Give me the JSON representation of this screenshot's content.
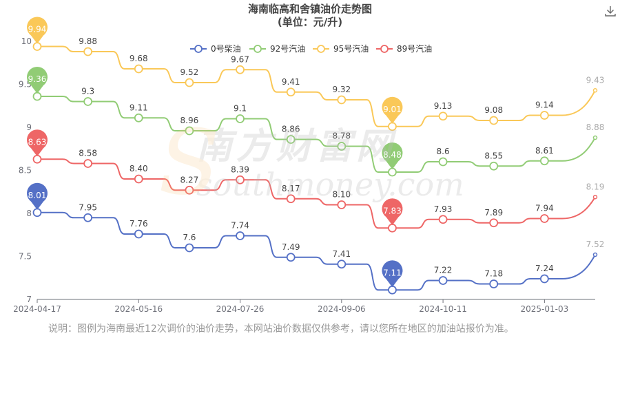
{
  "page": {
    "title_line1": "海南临高和舍镇油价走势图",
    "title_line2": "(单位：元/升)",
    "note": "说明：图例为海南最近12次调价的油价走势，本网站油价数据仅供参考，请以您所在地区的加油站报价为准。",
    "watermark_cn": "南方财富网",
    "watermark_en": "southmoney.com",
    "download_icon": "download-icon"
  },
  "chart_data": {
    "type": "line",
    "title": "海南临高和舍镇油价走势图",
    "subtitle": "(单位：元/升)",
    "ylim": [
      7,
      10
    ],
    "yticks": [
      7,
      7.5,
      8,
      8.5,
      9,
      9.5,
      10
    ],
    "ytick_labels": [
      "7",
      "7.5",
      "8",
      "8.5",
      "9",
      "9.5",
      "10"
    ],
    "x": [
      "2024-04-17",
      "2024-05-01",
      "2024-05-16",
      "2024-05-30",
      "2024-07-26",
      "2024-08-08",
      "2024-09-06",
      "2024-09-20",
      "2024-10-11",
      "2024-10-25",
      "2025-01-03",
      "2025-01-17"
    ],
    "xtick_labels": [
      "2024-04-17",
      "2024-05-16",
      "2024-07-26",
      "2024-09-06",
      "2024-10-11",
      "2025-01-03"
    ],
    "legend_position": "top",
    "grid": false,
    "series": [
      {
        "name": "0号柴油",
        "color": "#5470c6",
        "values": [
          8.01,
          7.95,
          7.76,
          7.6,
          7.74,
          7.49,
          7.41,
          7.11,
          7.22,
          7.18,
          7.24,
          7.52
        ],
        "labels": [
          "8.01",
          "7.95",
          "7.76",
          "7.6",
          "7.74",
          "7.49",
          "7.41",
          "7.11",
          "7.22",
          "7.18",
          "7.24",
          "7.52"
        ],
        "max_index": 0,
        "min_index": 7
      },
      {
        "name": "92号汽油",
        "color": "#91cc75",
        "values": [
          9.36,
          9.3,
          9.11,
          8.96,
          9.1,
          8.86,
          8.78,
          8.48,
          8.6,
          8.55,
          8.61,
          8.88
        ],
        "labels": [
          "9.36",
          "9.3",
          "9.11",
          "8.96",
          "9.1",
          "8.86",
          "8.78",
          "8.48",
          "8.6",
          "8.55",
          "8.61",
          "8.88"
        ],
        "max_index": 0,
        "min_index": 7
      },
      {
        "name": "95号汽油",
        "color": "#fac858",
        "values": [
          9.94,
          9.88,
          9.68,
          9.52,
          9.67,
          9.41,
          9.32,
          9.01,
          9.13,
          9.08,
          9.14,
          9.43
        ],
        "labels": [
          "9.94",
          "9.88",
          "9.68",
          "9.52",
          "9.67",
          "9.41",
          "9.32",
          "9.01",
          "9.13",
          "9.08",
          "9.14",
          "9.43"
        ],
        "max_index": 0,
        "min_index": 7
      },
      {
        "name": "89号汽油",
        "color": "#ee6666",
        "values": [
          8.63,
          8.58,
          8.4,
          8.27,
          8.39,
          8.17,
          8.1,
          7.83,
          7.93,
          7.89,
          7.94,
          8.19
        ],
        "labels": [
          "8.63",
          "8.58",
          "8.40",
          "8.27",
          "8.39",
          "8.17",
          "8.10",
          "7.83",
          "7.93",
          "7.89",
          "7.94",
          "8.19"
        ],
        "max_index": 0,
        "min_index": 7
      }
    ]
  }
}
